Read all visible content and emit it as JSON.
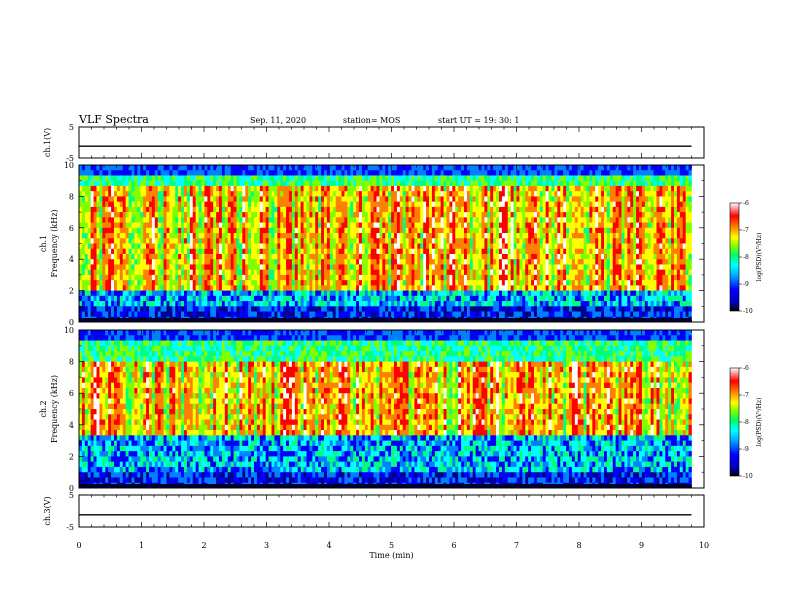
{
  "header": {
    "title": "VLF Spectra",
    "date": "Sep. 11, 2020",
    "station": "station= MOS",
    "start": "start  UT =    19: 30: 1"
  },
  "chart_data": [
    {
      "type": "line",
      "panel": "ch1-waveform",
      "ylabel": "ch.1(V)",
      "ylim": [
        -5,
        5
      ],
      "y_ticks": [
        5,
        -5
      ],
      "tick_labels": [
        "5",
        "-5"
      ],
      "x": [
        0,
        9.8
      ],
      "values": [
        -1.2,
        -1.2
      ]
    },
    {
      "type": "heatmap",
      "panel": "ch1-spectrogram",
      "ylabel_line1": "ch.1",
      "ylabel_line2": "Frequency (kHz)",
      "ylim": [
        0,
        10
      ],
      "y_ticks": [
        0,
        2,
        4,
        6,
        8,
        10
      ],
      "xlim": [
        0,
        9.8
      ],
      "colorbar": {
        "label": "log(PSD)(V²/Hz)",
        "range": [
          -10,
          -6
        ],
        "ticks": [
          -6,
          -7,
          -8,
          -9,
          -10
        ]
      }
    },
    {
      "type": "heatmap",
      "panel": "ch2-spectrogram",
      "ylabel_line1": "ch.2",
      "ylabel_line2": "Frequency (kHz)",
      "ylim": [
        0,
        10
      ],
      "y_ticks": [
        0,
        2,
        4,
        6,
        8,
        10
      ],
      "xlim": [
        0,
        9.8
      ],
      "colorbar": {
        "label": "log(PSD)(V²/Hz)",
        "range": [
          -10,
          -6
        ],
        "ticks": [
          -6,
          -7,
          -8,
          -9,
          -10
        ]
      }
    },
    {
      "type": "line",
      "panel": "ch3-waveform",
      "ylabel": "ch.3(V)",
      "ylim": [
        -5,
        5
      ],
      "y_ticks": [
        5,
        -5
      ],
      "tick_labels": [
        "5",
        "-5"
      ],
      "x": [
        0,
        9.8
      ],
      "values": [
        -1.2,
        -1.2
      ]
    }
  ],
  "x_axis": {
    "label": "Time (min)",
    "range": [
      0,
      10
    ],
    "ticks": [
      "0",
      "1",
      "2",
      "3",
      "4",
      "5",
      "6",
      "7",
      "8",
      "9",
      "10"
    ]
  },
  "colors": {
    "scale": [
      "#000090",
      "#0000ff",
      "#0080ff",
      "#00ffff",
      "#00ff80",
      "#80ff00",
      "#ffff00",
      "#ff8000",
      "#ff0000",
      "#ffffff"
    ]
  }
}
